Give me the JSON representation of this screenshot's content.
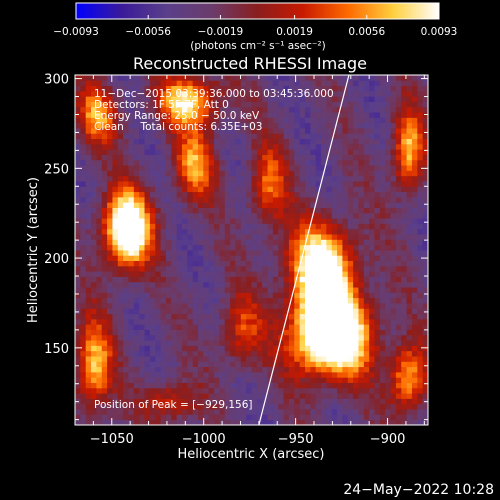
{
  "chart_data": {
    "type": "heatmap",
    "title": "Reconstructed RHESSI Image",
    "xlabel": "Heliocentric X (arcsec)",
    "ylabel": "Heliocentric Y (arcsec)",
    "xlim": [
      -1070,
      -878
    ],
    "ylim": [
      107,
      302
    ],
    "xticks": [
      -1050,
      -1000,
      -950,
      -900
    ],
    "yticks": [
      150,
      200,
      250,
      300
    ],
    "xtick_labels": [
      "−1050",
      "−1000",
      "−950",
      "−900"
    ],
    "ytick_labels": [
      "150",
      "200",
      "250",
      "300"
    ],
    "colorbar": {
      "ticks": [
        -0.0093,
        -0.0056,
        -0.0019,
        0.0019,
        0.0056,
        0.0093
      ],
      "tick_labels": [
        "−0.0093",
        "−0.0056",
        "−0.0019",
        "0.0019",
        "0.0056",
        "0.0093"
      ],
      "units_label": "(photons cm⁻² s⁻¹ asec⁻²)",
      "min": -0.0093,
      "max": 0.0093
    },
    "info_lines": [
      "11−Dec−2015 03:39:36.000 to 03:45:36.000",
      "Detectors: 1F 5F 7F, Att 0",
      "Energy Range: 25.0 − 50.0 keV",
      "Clean     Total counts: 6.35E+03"
    ],
    "peak_label": "Position of Peak = [−929,156]",
    "peak": [
      -929,
      156
    ],
    "limb_line": [
      [
        -970,
        107
      ],
      [
        -921,
        302
      ]
    ],
    "sources": [
      {
        "x": -931,
        "y": 157,
        "sx": 15,
        "sy": 16,
        "amp": 1.05
      },
      {
        "x": -936,
        "y": 195,
        "sx": 13,
        "sy": 17,
        "amp": 0.78
      },
      {
        "x": -1042,
        "y": 216,
        "sx": 9,
        "sy": 15,
        "amp": 0.95
      },
      {
        "x": -1008,
        "y": 288,
        "sx": 12,
        "sy": 10,
        "amp": 0.6
      },
      {
        "x": -1005,
        "y": 252,
        "sx": 8,
        "sy": 14,
        "amp": 0.45
      },
      {
        "x": -889,
        "y": 260,
        "sx": 6,
        "sy": 16,
        "amp": 0.55
      },
      {
        "x": -889,
        "y": 133,
        "sx": 7,
        "sy": 13,
        "amp": 0.55
      },
      {
        "x": -1060,
        "y": 140,
        "sx": 7,
        "sy": 18,
        "amp": 0.55
      },
      {
        "x": -1058,
        "y": 280,
        "sx": 8,
        "sy": 12,
        "amp": 0.45
      },
      {
        "x": -965,
        "y": 240,
        "sx": 7,
        "sy": 16,
        "amp": 0.4
      },
      {
        "x": -980,
        "y": 160,
        "sx": 8,
        "sy": 14,
        "amp": 0.35
      },
      {
        "x": -1018,
        "y": 120,
        "sx": 10,
        "sy": 8,
        "amp": 0.35
      }
    ],
    "color_stops": [
      "#0000ff",
      "#3a1a9a",
      "#5a3f8a",
      "#6b3c6b",
      "#8a1e1e",
      "#c81a00",
      "#ff6a00",
      "#ffd040",
      "#ffffff"
    ]
  },
  "footer": {
    "date": "24−May−2022 10:28"
  }
}
